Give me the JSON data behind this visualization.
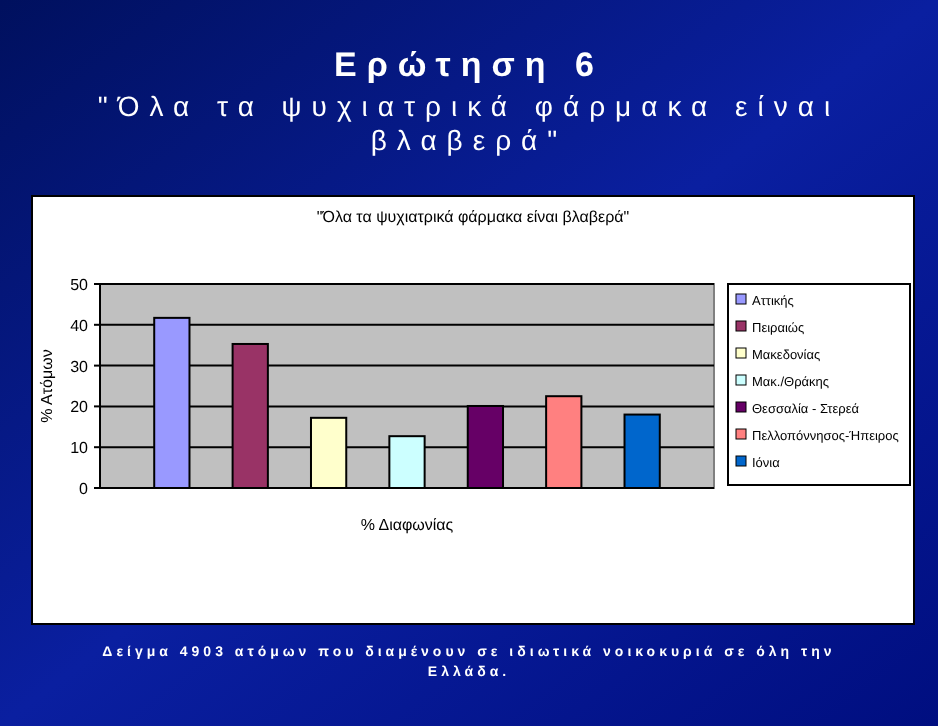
{
  "chart_data": {
    "type": "bar",
    "title": "Ερώτηση 6",
    "subtitle": "\"Όλα τα ψυχιατρικά φάρμακα είναι βλαβερά\"",
    "annotations": [
      "\"Όλα τα ψυχιατρικά φάρμακα είναι βλαβερά\"",
      "Δείγμα 4903 ατόμων που διαμένουν σε ιδιωτικά νοικοκυριά σε όλη την Ελλάδα."
    ],
    "xlabel": "% Διαφωνίας",
    "ylabel": "% Ατόμων",
    "categories": [
      null
    ],
    "ylim": [
      0,
      50
    ],
    "yticks": [
      0,
      10,
      20,
      30,
      40,
      50
    ],
    "grid": "y",
    "legend": "right",
    "series": [
      {
        "name": "Αττικής",
        "color": "#9999ff",
        "values": [
          41.7
        ]
      },
      {
        "name": "Πειραιώς",
        "color": "#993366",
        "values": [
          35.3
        ]
      },
      {
        "name": "Μακεδονίας",
        "color": "#ffffcc",
        "values": [
          17.2
        ]
      },
      {
        "name": "Μακ./Θράκης",
        "color": "#ccffff",
        "values": [
          12.7
        ]
      },
      {
        "name": "Θεσσαλία - Στερεά",
        "color": "#660066",
        "values": [
          20.1
        ]
      },
      {
        "name": "Πελλοπόννησος-Ήπειρος",
        "color": "#ff8080",
        "values": [
          22.5
        ]
      },
      {
        "name": "Ιόνια",
        "color": "#0066cc",
        "values": [
          18
        ]
      }
    ]
  }
}
